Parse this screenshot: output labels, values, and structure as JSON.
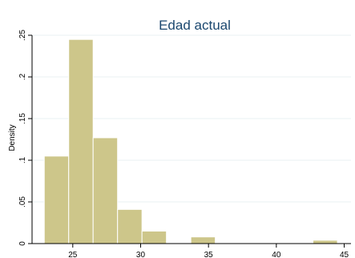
{
  "chart_data": {
    "type": "bar",
    "title": "Edad actual",
    "xlabel": "",
    "ylabel": "Density",
    "xlim": [
      22,
      45.5
    ],
    "ylim": [
      0,
      0.25
    ],
    "grid": true,
    "x_ticks": [
      25,
      30,
      35,
      40,
      45
    ],
    "y_ticks": [
      0,
      0.05,
      0.1,
      0.15,
      0.2,
      0.25
    ],
    "y_tick_labels": [
      "0",
      ".05",
      ".1",
      ".15",
      ".2",
      ".25"
    ],
    "bin_width": 1.8,
    "bins": [
      {
        "x0": 22.9,
        "x1": 24.7,
        "density": 0.105
      },
      {
        "x0": 24.7,
        "x1": 26.5,
        "density": 0.245
      },
      {
        "x0": 26.5,
        "x1": 28.3,
        "density": 0.127
      },
      {
        "x0": 28.3,
        "x1": 30.1,
        "density": 0.041
      },
      {
        "x0": 30.1,
        "x1": 31.9,
        "density": 0.015
      },
      {
        "x0": 31.9,
        "x1": 33.7,
        "density": 0.0
      },
      {
        "x0": 33.7,
        "x1": 35.5,
        "density": 0.008
      },
      {
        "x0": 35.5,
        "x1": 37.3,
        "density": 0.0
      },
      {
        "x0": 37.3,
        "x1": 39.1,
        "density": 0.0
      },
      {
        "x0": 39.1,
        "x1": 40.9,
        "density": 0.0
      },
      {
        "x0": 40.9,
        "x1": 42.7,
        "density": 0.0
      },
      {
        "x0": 42.7,
        "x1": 44.5,
        "density": 0.004
      }
    ],
    "colors": {
      "bar": "#cdc68a",
      "title": "#1a476f",
      "grid": "#eaf2f3"
    }
  }
}
